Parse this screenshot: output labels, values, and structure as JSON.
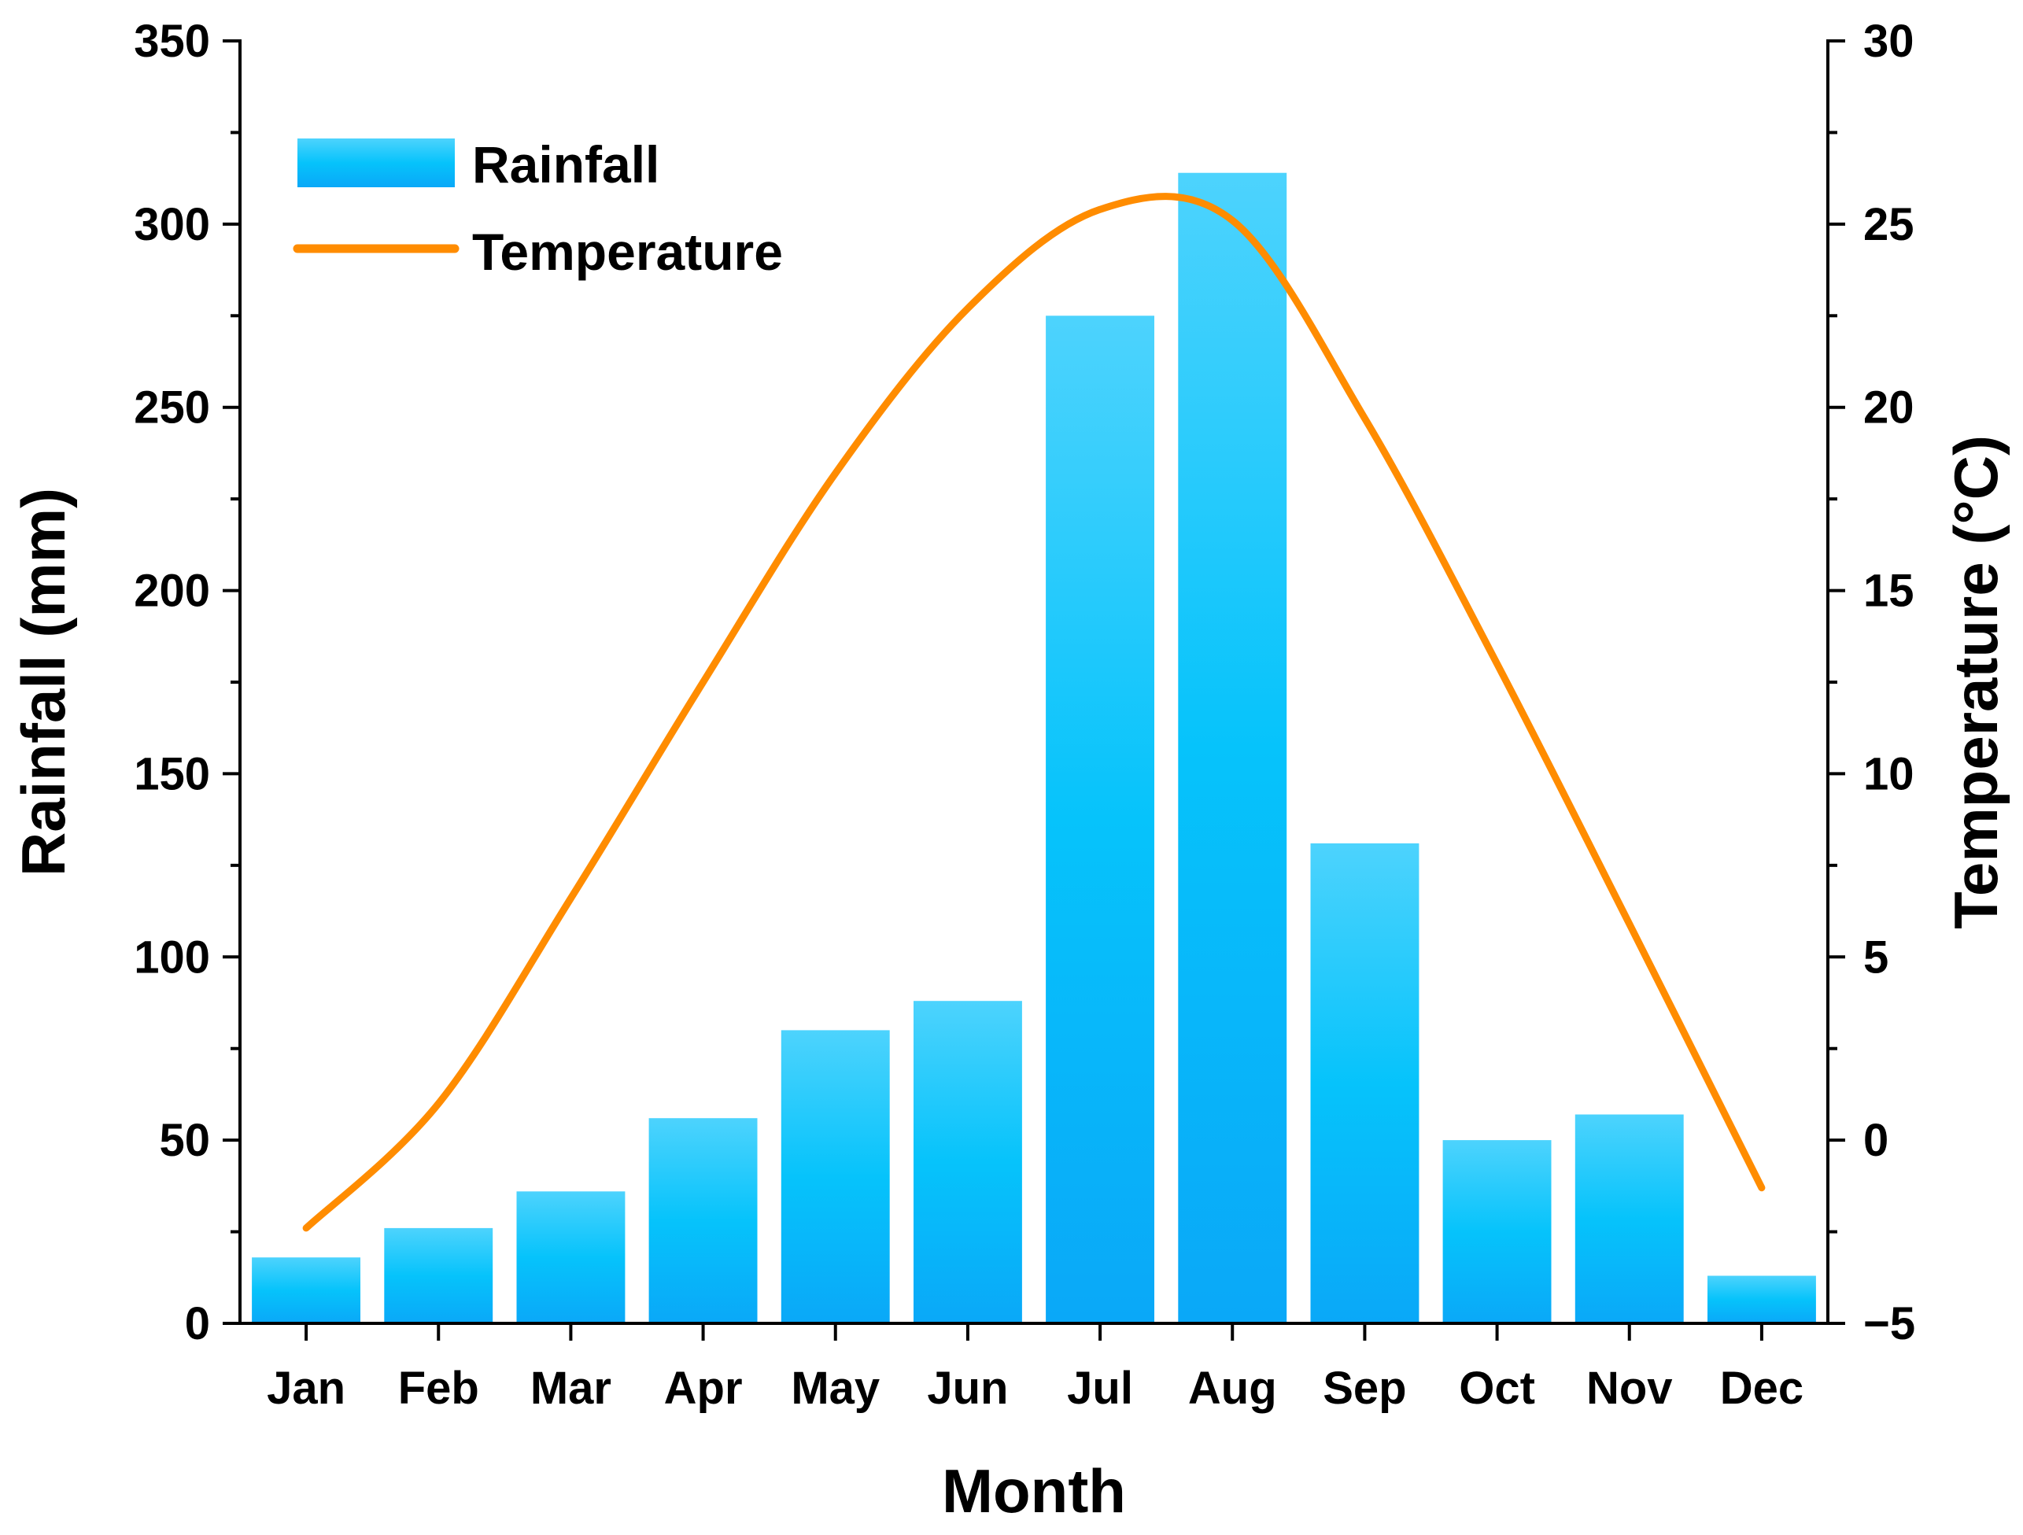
{
  "chart_data": {
    "type": "bar",
    "categories": [
      "Jan",
      "Feb",
      "Mar",
      "Apr",
      "May",
      "Jun",
      "Jul",
      "Aug",
      "Sep",
      "Oct",
      "Nov",
      "Dec"
    ],
    "series": [
      {
        "name": "Rainfall",
        "type": "bar",
        "axis": "left",
        "values": [
          18,
          26,
          36,
          56,
          80,
          88,
          275,
          314,
          131,
          50,
          57,
          13
        ],
        "color": "#1EB6F5"
      },
      {
        "name": "Temperature",
        "type": "line",
        "axis": "right",
        "values": [
          -2.4,
          1.0,
          6.6,
          12.5,
          18.2,
          22.7,
          25.4,
          25.1,
          19.7,
          13.0,
          5.9,
          -1.3
        ],
        "color": "#FF8C00"
      }
    ],
    "xlabel": "Month",
    "ylabel": "Rainfall (mm)",
    "y2label": "Temperature (°C)",
    "ylim": [
      0,
      350
    ],
    "y2lim": [
      -5,
      30
    ],
    "yticks": [
      "0",
      "50",
      "100",
      "150",
      "200",
      "250",
      "300",
      "350"
    ],
    "y2ticks": [
      "−5",
      "0",
      "5",
      "10",
      "15",
      "20",
      "25",
      "30"
    ],
    "legend": {
      "position": "top-left",
      "entries": [
        "Rainfall",
        "Temperature"
      ]
    },
    "grid": false
  }
}
